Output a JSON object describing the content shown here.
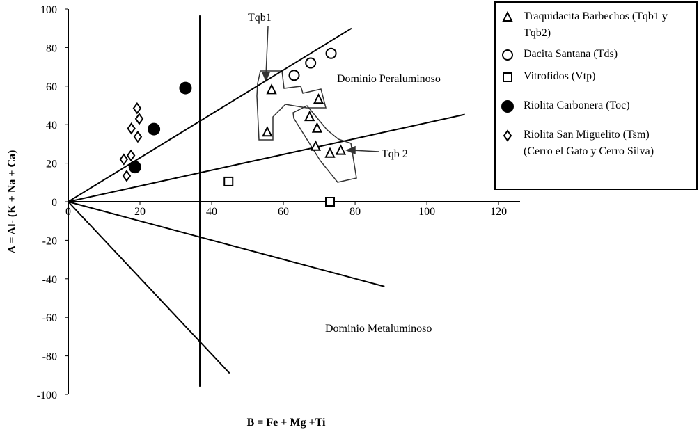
{
  "chart_data": {
    "type": "scatter",
    "xlabel": "B = Fe + Mg +Ti",
    "ylabel": "A = Al- (K + Na + Ca)",
    "xlim": [
      0,
      126
    ],
    "ylim": [
      -100,
      100
    ],
    "xticks": [
      0,
      20,
      40,
      60,
      80,
      100,
      120
    ],
    "yticks": [
      100,
      80,
      60,
      40,
      20,
      0,
      -20,
      -40,
      -60,
      -80,
      -100
    ],
    "annotations": [
      "Tqb1",
      "Tqb 2",
      "Dominio Peraluminoso",
      "Dominio Metaluminoso"
    ],
    "reference_lines": [
      {
        "x": [
          0,
          79
        ],
        "y": [
          0,
          90
        ]
      },
      {
        "x": [
          0,
          110.6
        ],
        "y": [
          0,
          45.3
        ]
      },
      {
        "x": [
          0,
          88.2
        ],
        "y": [
          0,
          -44
        ]
      },
      {
        "x": [
          0,
          45
        ],
        "y": [
          0,
          -89
        ]
      },
      {
        "x": [
          36.7,
          36.7
        ],
        "y": [
          96.7,
          -96
        ]
      }
    ],
    "series": [
      {
        "name": "Traquidacita Barbechos (Tqb1 y Tqb2)",
        "marker": "triangle",
        "color": "#000000",
        "x": [
          56.7,
          55.5,
          69.8,
          67.3,
          69.4,
          69,
          73,
          76
        ],
        "values": [
          58,
          36,
          53,
          44,
          38,
          28.6,
          25,
          26.5
        ]
      },
      {
        "name": "Dacita Santana (Tds)",
        "marker": "circle",
        "color": "#000000",
        "x": [
          63,
          67.6,
          73.3
        ],
        "values": [
          65.6,
          72,
          77
        ]
      },
      {
        "name": "Vitrofidos (Vtp)",
        "marker": "square",
        "color": "#000000",
        "x": [
          44.7,
          73
        ],
        "values": [
          10.5,
          0
        ]
      },
      {
        "name": "Riolita Carbonera (Toc)",
        "marker": "filled-circle",
        "color": "#000000",
        "x": [
          32.7,
          23.9,
          18.6
        ],
        "values": [
          59,
          37.7,
          18
        ]
      },
      {
        "name": "Riolita San Miguelito (Tsm) (Cerro el Gato y Cerro Silva)",
        "marker": "diamond",
        "color": "#000000",
        "x": [
          19.2,
          19.8,
          17.6,
          19.4,
          17.5,
          15.5,
          16.3
        ],
        "values": [
          48.5,
          43,
          38,
          33.7,
          24,
          22,
          13.4
        ]
      }
    ]
  }
}
